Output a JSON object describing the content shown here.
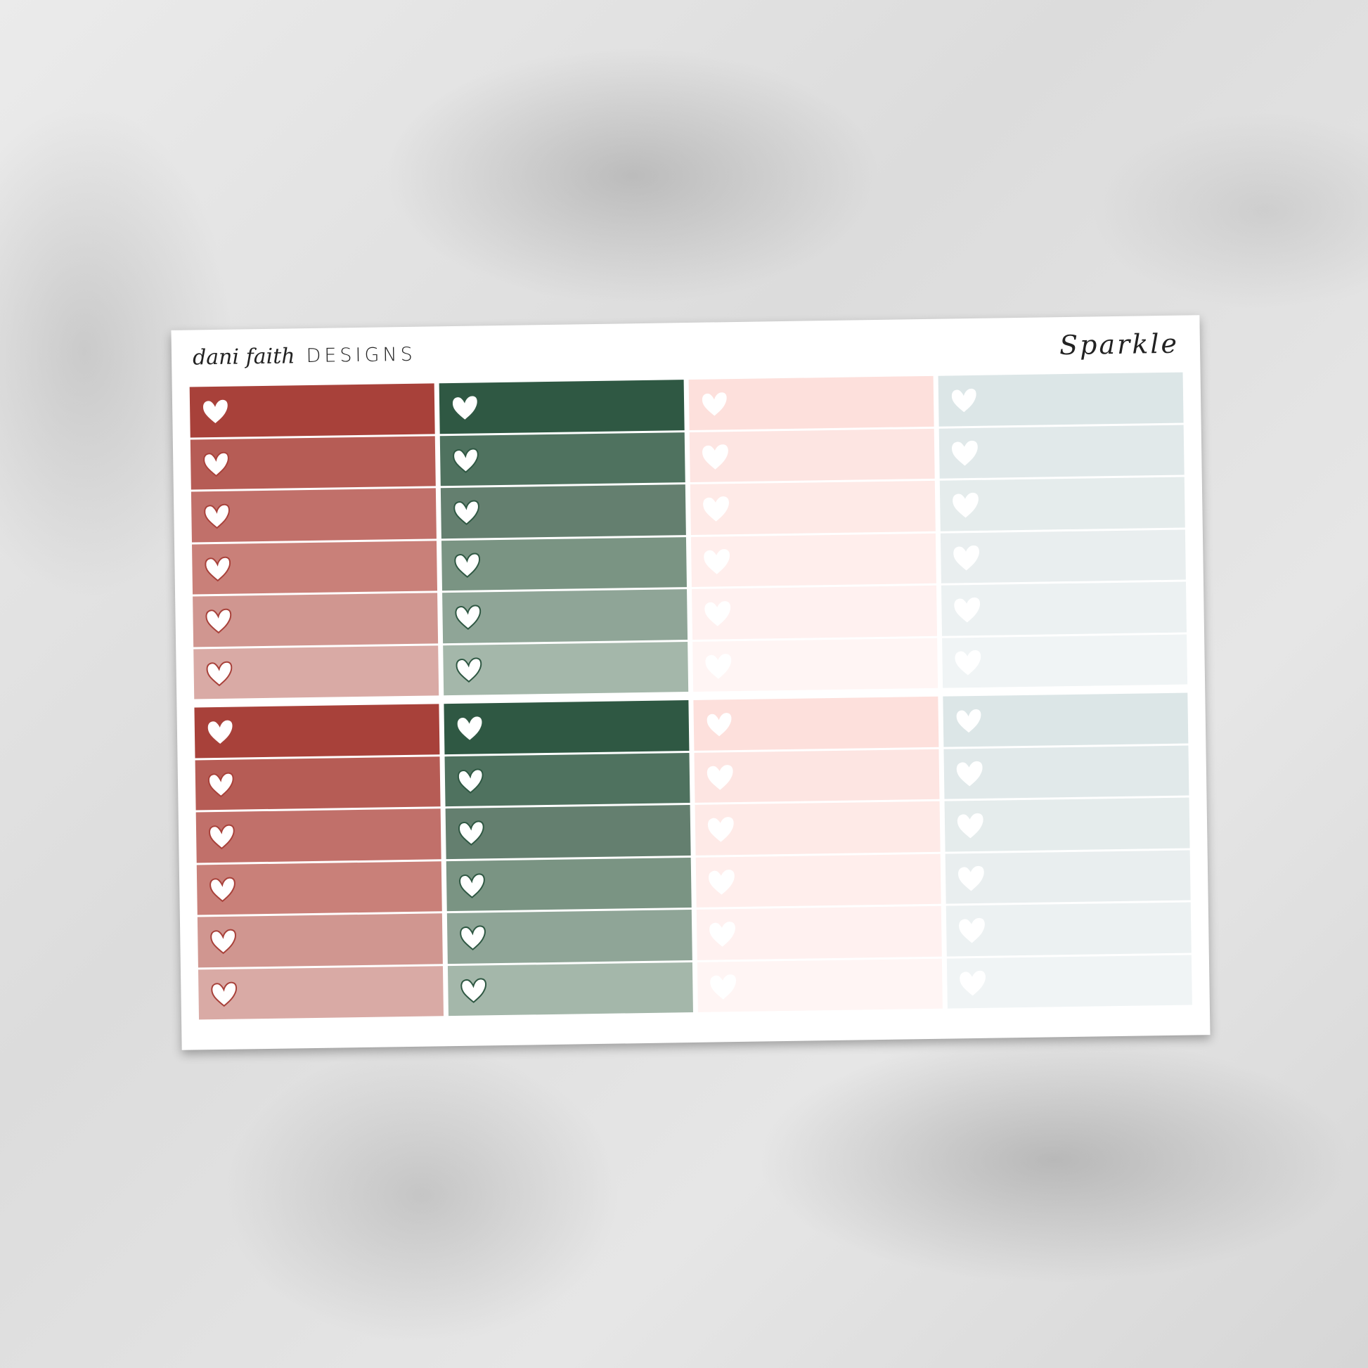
{
  "sheet": {
    "brand_script": "dani faith",
    "brand_word": "DESIGNS",
    "title": "Sparkle"
  },
  "palette": [
    {
      "name": "red",
      "heart_stroke": "#a8413a",
      "shades": [
        "#a8413a",
        "#b65c55",
        "#c1706a",
        "#c98079",
        "#d09690",
        "#d9aaa5"
      ]
    },
    {
      "name": "green",
      "heart_stroke": "#2f5843",
      "shades": [
        "#2f5843",
        "#4f725f",
        "#647f6f",
        "#7a9483",
        "#8fa597",
        "#a4b7aa"
      ]
    },
    {
      "name": "pink",
      "heart_stroke": "#ffffff",
      "shades": [
        "#fde0dc",
        "#fde5e2",
        "#feeae7",
        "#ffeeec",
        "#fff1f0",
        "#fff5f4"
      ]
    },
    {
      "name": "blue",
      "heart_stroke": "#ffffff",
      "shades": [
        "#dce6e7",
        "#e1e9ea",
        "#e5ecec",
        "#e9eeef",
        "#ecf1f2",
        "#f0f4f5"
      ]
    }
  ],
  "blocks": 2,
  "heart_icon": "heart-icon"
}
